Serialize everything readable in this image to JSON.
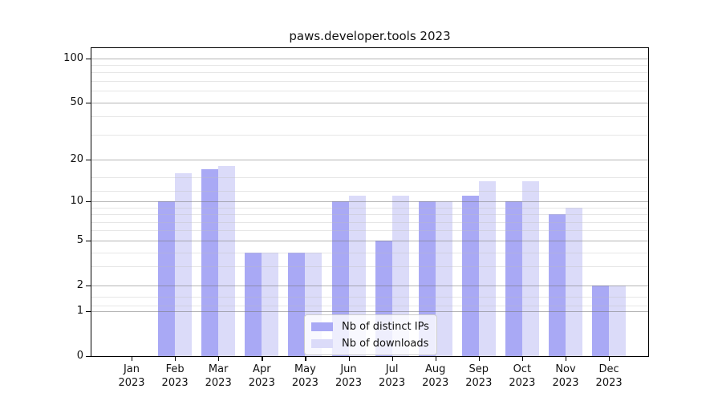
{
  "title": "paws.developer.tools 2023",
  "chart_data": {
    "type": "bar",
    "title": "paws.developer.tools 2023",
    "categories": [
      "Jan",
      "Feb",
      "Mar",
      "Apr",
      "May",
      "Jun",
      "Jul",
      "Aug",
      "Sep",
      "Oct",
      "Nov",
      "Dec"
    ],
    "x_year": "2023",
    "series": [
      {
        "name": "Nb of distinct IPs",
        "color": "#a9a9f5",
        "values": [
          0,
          10,
          17,
          4,
          4,
          10,
          5,
          10,
          11,
          10,
          8,
          2
        ]
      },
      {
        "name": "Nb of downloads",
        "color": "#dbdbf9",
        "values": [
          0,
          16,
          18,
          4,
          4,
          11,
          11,
          10,
          14,
          14,
          9,
          2
        ]
      }
    ],
    "yscale": "log1p",
    "ylim": [
      0,
      117
    ],
    "y_major_ticks": [
      100,
      50,
      20,
      10,
      5,
      2,
      1,
      0
    ],
    "y_minor_gridlines": [
      1.2,
      1.5,
      3,
      4,
      6,
      7,
      8,
      9,
      12,
      15,
      30,
      40,
      60,
      70,
      80,
      90
    ],
    "grid": "horizontal",
    "legend_position": "lower-center",
    "colors": {
      "grid_major": "#b5b5b5",
      "grid_minor": "#e9e9e9",
      "spine": "#000000",
      "text": "#111111"
    }
  }
}
